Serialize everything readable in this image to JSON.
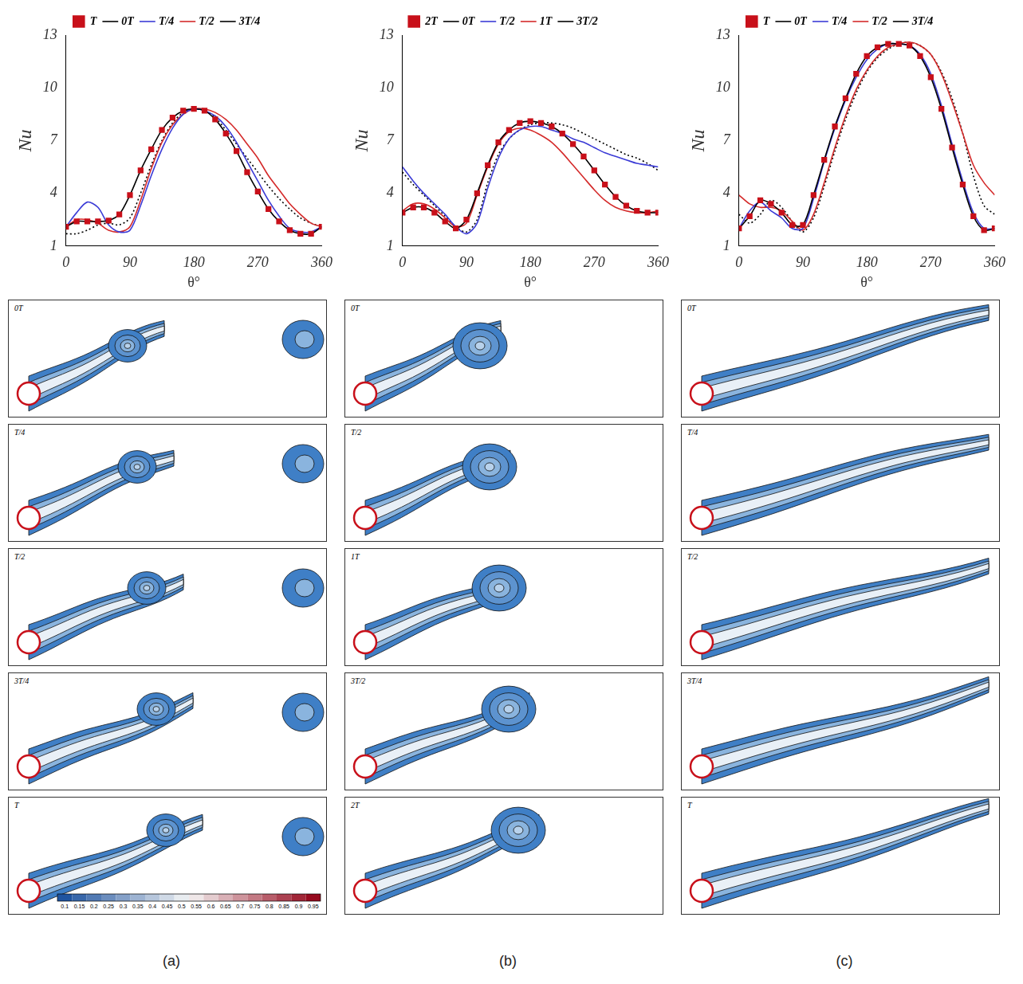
{
  "chart_data": [
    {
      "type": "line",
      "x_label": "θ°",
      "y_label": "Nu",
      "legend": "top",
      "grid": false,
      "xlim": [
        0,
        360
      ],
      "xticks": [
        0,
        90,
        180,
        270,
        360
      ],
      "ylim": [
        1,
        13
      ],
      "yticks": [
        1,
        4,
        7,
        10,
        13
      ],
      "x": [
        0,
        15,
        30,
        45,
        60,
        75,
        90,
        105,
        120,
        135,
        150,
        165,
        180,
        195,
        210,
        225,
        240,
        255,
        270,
        285,
        300,
        315,
        330,
        345,
        360
      ],
      "series": [
        {
          "name": "0T",
          "color": "#000000",
          "line_style": "solid",
          "marker": "none",
          "values": [
            2.1,
            2.4,
            2.4,
            2.4,
            2.45,
            2.8,
            3.9,
            5.3,
            6.5,
            7.6,
            8.3,
            8.7,
            8.8,
            8.7,
            8.2,
            7.4,
            6.4,
            5.2,
            4.1,
            3.1,
            2.4,
            1.9,
            1.7,
            1.7,
            2.1
          ]
        },
        {
          "name": "T/4",
          "color": "#3b3bd6",
          "line_style": "solid",
          "marker": "none",
          "values": [
            2.1,
            2.9,
            3.5,
            3.2,
            2.2,
            1.8,
            1.9,
            3.3,
            5.0,
            6.5,
            7.7,
            8.5,
            8.8,
            8.7,
            8.4,
            7.8,
            6.9,
            5.8,
            4.7,
            3.6,
            2.7,
            2.0,
            1.8,
            1.8,
            2.1
          ]
        },
        {
          "name": "T/2",
          "color": "#d42a2a",
          "line_style": "solid",
          "marker": "none",
          "values": [
            2.1,
            2.5,
            2.5,
            2.3,
            1.9,
            1.8,
            2.1,
            3.6,
            5.4,
            6.9,
            7.9,
            8.5,
            8.8,
            8.8,
            8.6,
            8.2,
            7.6,
            6.8,
            6.0,
            5.0,
            4.2,
            3.4,
            2.8,
            2.3,
            2.1
          ]
        },
        {
          "name": "3T/4",
          "color": "#000000",
          "line_style": "dotted",
          "marker": "none",
          "values": [
            1.7,
            1.7,
            1.9,
            2.2,
            2.3,
            2.2,
            2.6,
            4.0,
            5.6,
            7.0,
            8.0,
            8.6,
            8.8,
            8.7,
            8.3,
            7.6,
            6.8,
            6.0,
            5.2,
            4.4,
            3.7,
            3.1,
            2.6,
            2.3,
            2.1
          ]
        },
        {
          "name": "T",
          "color": "#c8101a",
          "line_style": "none",
          "marker": "square",
          "values": [
            2.1,
            2.4,
            2.4,
            2.4,
            2.45,
            2.8,
            3.9,
            5.3,
            6.5,
            7.6,
            8.3,
            8.7,
            8.8,
            8.7,
            8.2,
            7.4,
            6.4,
            5.2,
            4.1,
            3.1,
            2.4,
            1.9,
            1.7,
            1.7,
            2.1
          ]
        }
      ]
    },
    {
      "type": "line",
      "x_label": "θ°",
      "y_label": "Nu",
      "legend": "top",
      "grid": false,
      "xlim": [
        0,
        360
      ],
      "xticks": [
        0,
        90,
        180,
        270,
        360
      ],
      "ylim": [
        1,
        13
      ],
      "yticks": [
        1,
        4,
        7,
        10,
        13
      ],
      "x": [
        0,
        15,
        30,
        45,
        60,
        75,
        90,
        105,
        120,
        135,
        150,
        165,
        180,
        195,
        210,
        225,
        240,
        255,
        270,
        285,
        300,
        315,
        330,
        345,
        360
      ],
      "series": [
        {
          "name": "0T",
          "color": "#000000",
          "line_style": "solid",
          "marker": "none",
          "values": [
            2.9,
            3.2,
            3.2,
            2.9,
            2.4,
            2.0,
            2.5,
            4.0,
            5.6,
            6.9,
            7.6,
            8.0,
            8.1,
            8.0,
            7.8,
            7.4,
            6.8,
            6.1,
            5.3,
            4.5,
            3.8,
            3.3,
            3.0,
            2.9,
            2.9
          ]
        },
        {
          "name": "T/2",
          "color": "#3b3bd6",
          "line_style": "solid",
          "marker": "none",
          "values": [
            5.5,
            4.7,
            4.0,
            3.4,
            2.8,
            2.1,
            1.7,
            2.3,
            4.3,
            6.0,
            7.1,
            7.6,
            7.8,
            7.8,
            7.6,
            7.4,
            7.1,
            6.9,
            6.6,
            6.3,
            6.1,
            5.9,
            5.7,
            5.6,
            5.5
          ]
        },
        {
          "name": "1T",
          "color": "#d42a2a",
          "line_style": "solid",
          "marker": "none",
          "values": [
            3.0,
            3.4,
            3.4,
            3.1,
            2.6,
            2.1,
            2.3,
            3.9,
            5.5,
            6.8,
            7.5,
            7.7,
            7.6,
            7.3,
            6.9,
            6.3,
            5.6,
            4.9,
            4.2,
            3.6,
            3.2,
            3.0,
            2.9,
            2.9,
            3.0
          ]
        },
        {
          "name": "3T/2",
          "color": "#000000",
          "line_style": "dotted",
          "marker": "none",
          "values": [
            5.2,
            4.5,
            3.9,
            3.3,
            2.7,
            2.1,
            1.8,
            2.5,
            4.6,
            6.2,
            7.1,
            7.6,
            7.9,
            8.0,
            8.0,
            7.9,
            7.7,
            7.4,
            7.1,
            6.8,
            6.5,
            6.2,
            6.0,
            5.7,
            5.3
          ]
        },
        {
          "name": "2T",
          "color": "#c8101a",
          "line_style": "none",
          "marker": "square",
          "values": [
            2.9,
            3.2,
            3.2,
            2.9,
            2.4,
            2.0,
            2.5,
            4.0,
            5.6,
            6.9,
            7.6,
            8.0,
            8.1,
            8.0,
            7.8,
            7.4,
            6.8,
            6.1,
            5.3,
            4.5,
            3.8,
            3.3,
            3.0,
            2.9,
            2.9
          ]
        }
      ]
    },
    {
      "type": "line",
      "x_label": "θ°",
      "y_label": "Nu",
      "legend": "top",
      "grid": false,
      "xlim": [
        0,
        360
      ],
      "xticks": [
        0,
        90,
        180,
        270,
        360
      ],
      "ylim": [
        1,
        13
      ],
      "yticks": [
        1,
        4,
        7,
        10,
        13
      ],
      "x": [
        0,
        15,
        30,
        45,
        60,
        75,
        90,
        105,
        120,
        135,
        150,
        165,
        180,
        195,
        210,
        225,
        240,
        255,
        270,
        285,
        300,
        315,
        330,
        345,
        360
      ],
      "series": [
        {
          "name": "0T",
          "color": "#000000",
          "line_style": "solid",
          "marker": "none",
          "values": [
            2.0,
            2.7,
            3.6,
            3.4,
            2.9,
            2.2,
            2.2,
            3.9,
            5.9,
            7.8,
            9.4,
            10.8,
            11.8,
            12.3,
            12.5,
            12.5,
            12.4,
            11.8,
            10.6,
            8.8,
            6.6,
            4.5,
            2.7,
            1.9,
            2.0
          ]
        },
        {
          "name": "T/4",
          "color": "#3b3bd6",
          "line_style": "solid",
          "marker": "none",
          "values": [
            2.0,
            3.0,
            3.5,
            3.0,
            2.6,
            2.0,
            2.0,
            3.7,
            5.8,
            7.7,
            9.3,
            10.6,
            11.6,
            12.2,
            12.5,
            12.5,
            12.4,
            11.9,
            10.8,
            9.0,
            6.8,
            4.7,
            2.9,
            2.0,
            2.0
          ]
        },
        {
          "name": "T/2",
          "color": "#d42a2a",
          "line_style": "solid",
          "marker": "none",
          "values": [
            3.9,
            3.4,
            3.2,
            3.2,
            3.0,
            2.4,
            1.9,
            2.8,
            4.6,
            6.6,
            8.4,
            9.9,
            11.0,
            11.8,
            12.3,
            12.5,
            12.6,
            12.4,
            11.9,
            10.8,
            9.2,
            7.4,
            5.6,
            4.6,
            3.9
          ]
        },
        {
          "name": "3T/4",
          "color": "#000000",
          "line_style": "dotted",
          "marker": "none",
          "values": [
            2.8,
            2.3,
            2.8,
            3.6,
            3.2,
            2.4,
            1.8,
            2.6,
            4.4,
            6.4,
            8.2,
            9.7,
            10.9,
            11.7,
            12.2,
            12.5,
            12.6,
            12.4,
            11.9,
            10.9,
            9.4,
            7.4,
            5.0,
            3.3,
            2.8
          ]
        },
        {
          "name": "T",
          "color": "#c8101a",
          "line_style": "none",
          "marker": "square",
          "values": [
            2.0,
            2.7,
            3.6,
            3.4,
            2.9,
            2.2,
            2.2,
            3.9,
            5.9,
            7.8,
            9.4,
            10.8,
            11.8,
            12.3,
            12.5,
            12.5,
            12.4,
            11.8,
            10.6,
            8.8,
            6.6,
            4.5,
            2.7,
            1.9,
            2.0
          ]
        }
      ]
    }
  ],
  "panel_labels": [
    "(a)",
    "(b)",
    "(c)"
  ],
  "snapshots": [
    [
      "0T",
      "T/4",
      "T/2",
      "3T/4",
      "T"
    ],
    [
      "0T",
      "T/2",
      "1T",
      "3T/2",
      "2T"
    ],
    [
      "0T",
      "T/4",
      "T/2",
      "3T/4",
      "T"
    ]
  ],
  "colorbar": {
    "range": [
      0.075,
      0.975
    ],
    "ticks": [
      0.1,
      0.15,
      0.2,
      0.25,
      0.3,
      0.35,
      0.4,
      0.45,
      0.5,
      0.55,
      0.6,
      0.65,
      0.7,
      0.75,
      0.8,
      0.85,
      0.9,
      0.95
    ]
  }
}
